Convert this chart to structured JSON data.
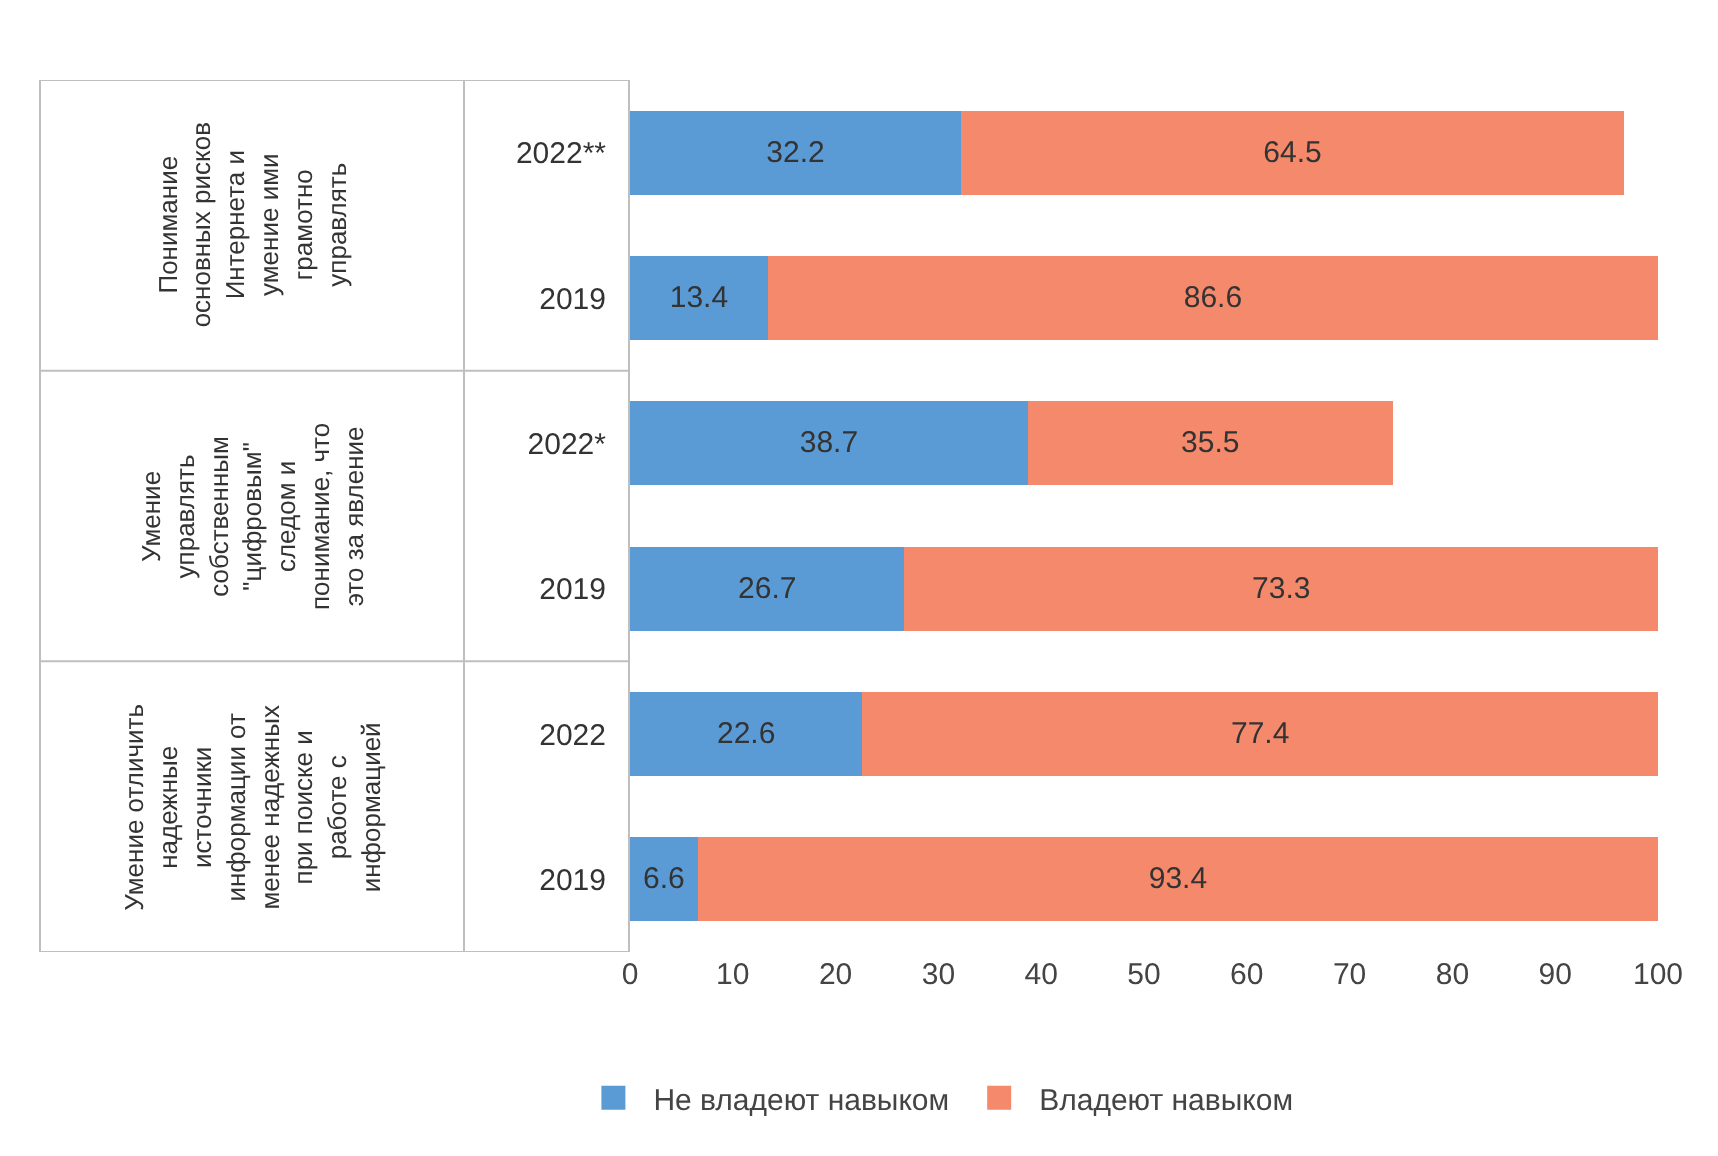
{
  "chart_data": {
    "type": "bar",
    "orientation": "horizontal",
    "stacked": true,
    "categories": [
      "2022**",
      "2019",
      "2022*",
      "2019",
      "2022",
      "2019"
    ],
    "series": [
      {
        "name": "Не владеют навыком",
        "color": "#5b9bd5",
        "values": [
          32.2,
          13.4,
          38.7,
          26.7,
          22.6,
          6.6
        ]
      },
      {
        "name": "Владеют навыком",
        "color": "#f4896b",
        "values": [
          64.5,
          86.6,
          35.5,
          73.3,
          77.4,
          93.4
        ]
      }
    ],
    "xlim": [
      0,
      100
    ],
    "xticks": [
      0,
      10,
      20,
      30,
      40,
      50,
      60,
      70,
      80,
      90,
      100
    ],
    "data_labels": true,
    "legend": "bottom",
    "annotations": [
      "Понимание\nосновных рисков\nИнтернета и\nумение ими\nграмотно\nуправлять",
      "Умение\nуправлять\nсобственным\n\"цифровым\"\nследом и\nпонимание, что\nэто за явление",
      "Умение отличить\nнадежные\nисточники\nинформации от\nменее надежных\nпри поиске и\nработе с\nинформацией"
    ]
  }
}
